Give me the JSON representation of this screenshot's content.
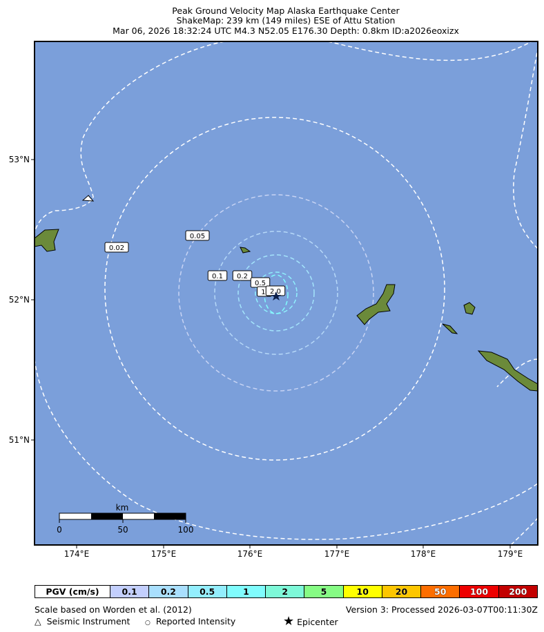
{
  "title": {
    "line1": "Peak Ground Velocity Map Alaska Earthquake Center",
    "line2": "ShakeMap: 239 km (149 miles) ESE of Attu Station",
    "line3": "Mar 06, 2026 18:32:24 UTC M4.3 N52.05 E176.30 Depth: 0.8km ID:a2026eoxizx"
  },
  "map": {
    "ocean_color": "#7b9fda",
    "land_color": "#6b8a3a",
    "lon_ticks": [
      "174°E",
      "175°E",
      "176°E",
      "177°E",
      "178°E",
      "179°E"
    ],
    "lat_ticks": [
      "53°N",
      "52°N",
      "51°N"
    ],
    "epicenter": {
      "lat": 52.05,
      "lon": 176.3,
      "icon": "star-icon"
    },
    "contour_labels": [
      "0.02",
      "0.05",
      "0.1",
      "0.2",
      "0.5",
      "1.",
      "2.0"
    ],
    "scale_bar": {
      "unit": "km",
      "ticks": [
        "0",
        "50",
        "100"
      ]
    }
  },
  "legend": {
    "label": "PGV (cm/s)",
    "bins": [
      {
        "value": "0.1",
        "color": "#c3cffd"
      },
      {
        "value": "0.2",
        "color": "#a9dffd"
      },
      {
        "value": "0.5",
        "color": "#93eefd"
      },
      {
        "value": "1",
        "color": "#80fcfd"
      },
      {
        "value": "2",
        "color": "#7ef8d8"
      },
      {
        "value": "5",
        "color": "#86fb84"
      },
      {
        "value": "10",
        "color": "#ffff00"
      },
      {
        "value": "20",
        "color": "#fdc600"
      },
      {
        "value": "50",
        "color": "#fd6e00"
      },
      {
        "value": "100",
        "color": "#ee0000"
      },
      {
        "value": "200",
        "color": "#c30000"
      }
    ]
  },
  "footer": {
    "scale_note": "Scale based on Worden et al. (2012)",
    "version": "Version 3: Processed 2026-03-07T00:11:30Z",
    "seismic_instrument": "Seismic Instrument",
    "reported_intensity": "Reported Intensity",
    "epicenter": "Epicenter"
  }
}
